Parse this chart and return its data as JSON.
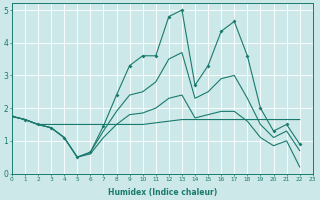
{
  "xlabel": "Humidex (Indice chaleur)",
  "xlim": [
    0,
    23
  ],
  "ylim": [
    0,
    5.2
  ],
  "xticks": [
    0,
    1,
    2,
    3,
    4,
    5,
    6,
    7,
    8,
    9,
    10,
    11,
    12,
    13,
    14,
    15,
    16,
    17,
    18,
    19,
    20,
    21,
    22,
    23
  ],
  "yticks": [
    0,
    1,
    2,
    3,
    4,
    5
  ],
  "bg_color": "#cce8e8",
  "line_color": "#1a7a6e",
  "grid_color": "#ffffff",
  "line1_x": [
    0,
    1,
    2,
    3,
    4,
    5,
    6,
    7,
    8,
    9,
    10,
    11,
    12,
    13,
    14,
    15,
    16,
    17,
    18,
    19,
    20,
    21,
    22
  ],
  "line1_y": [
    1.75,
    1.65,
    1.5,
    1.5,
    1.5,
    1.5,
    1.5,
    1.5,
    1.5,
    1.5,
    1.5,
    1.55,
    1.6,
    1.65,
    1.65,
    1.65,
    1.65,
    1.65,
    1.65,
    1.65,
    1.65,
    1.65,
    1.65
  ],
  "line2_x": [
    0,
    1,
    2,
    3,
    4,
    5,
    6,
    7,
    8,
    9,
    10,
    11,
    12,
    13,
    14,
    15,
    16,
    17,
    18,
    19,
    20,
    21,
    22
  ],
  "line2_y": [
    1.75,
    1.65,
    1.5,
    1.4,
    1.1,
    0.5,
    0.65,
    1.45,
    2.4,
    3.3,
    3.6,
    3.6,
    4.8,
    5.0,
    2.7,
    3.3,
    4.35,
    4.65,
    3.6,
    2.0,
    1.3,
    1.5,
    0.9
  ],
  "line3_x": [
    0,
    1,
    2,
    3,
    4,
    5,
    6,
    7,
    8,
    9,
    10,
    11,
    12,
    13,
    14,
    15,
    16,
    17,
    18,
    19,
    20,
    21,
    22
  ],
  "line3_y": [
    1.75,
    1.65,
    1.5,
    1.4,
    1.1,
    0.5,
    0.65,
    1.3,
    1.9,
    2.4,
    2.5,
    2.8,
    3.5,
    3.7,
    2.3,
    2.5,
    2.9,
    3.0,
    2.3,
    1.5,
    1.1,
    1.3,
    0.7
  ],
  "line4_x": [
    0,
    1,
    2,
    3,
    4,
    5,
    6,
    7,
    8,
    9,
    10,
    11,
    12,
    13,
    14,
    15,
    16,
    17,
    18,
    19,
    20,
    21,
    22
  ],
  "line4_y": [
    1.75,
    1.65,
    1.5,
    1.4,
    1.1,
    0.5,
    0.6,
    1.1,
    1.5,
    1.8,
    1.85,
    2.0,
    2.3,
    2.4,
    1.7,
    1.8,
    1.9,
    1.9,
    1.6,
    1.1,
    0.85,
    1.0,
    0.2
  ]
}
